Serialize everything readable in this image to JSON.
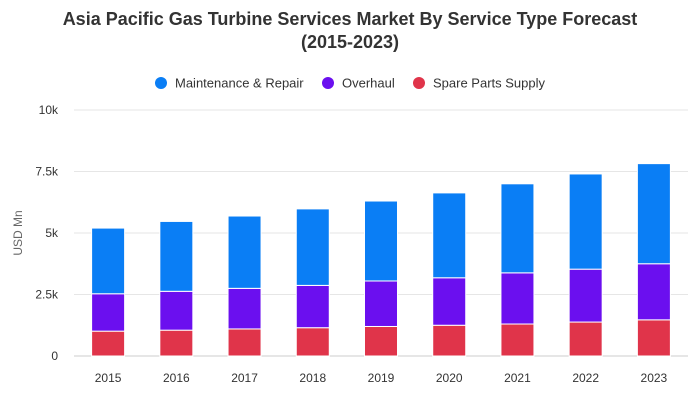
{
  "chart_data": {
    "type": "bar",
    "stacked": true,
    "title_line1": "Asia Pacific Gas Turbine Services Market By Service Type Forecast",
    "title_line2": "(2015-2023)",
    "ylabel": "USD Mn",
    "xlabel": "",
    "ylim": [
      0,
      10000
    ],
    "yticks": [
      {
        "value": 0,
        "label": "0"
      },
      {
        "value": 2500,
        "label": "2.5k"
      },
      {
        "value": 5000,
        "label": "5k"
      },
      {
        "value": 7500,
        "label": "7.5k"
      },
      {
        "value": 10000,
        "label": "10k"
      }
    ],
    "categories": [
      "2015",
      "2016",
      "2017",
      "2018",
      "2019",
      "2020",
      "2021",
      "2022",
      "2023"
    ],
    "grid": true,
    "legend_position": "top",
    "series": [
      {
        "name": "Spare Parts Supply",
        "color": "#e0344a",
        "values": [
          1010,
          1050,
          1100,
          1150,
          1200,
          1250,
          1300,
          1380,
          1470
        ]
      },
      {
        "name": "Overhaul",
        "color": "#6b0fef",
        "values": [
          1520,
          1580,
          1650,
          1720,
          1850,
          1930,
          2080,
          2150,
          2280
        ]
      },
      {
        "name": "Maintenance & Repair",
        "color": "#0a7ef5",
        "values": [
          2670,
          2840,
          2940,
          3110,
          3250,
          3450,
          3620,
          3870,
          4070
        ]
      }
    ],
    "legend_order": [
      "Maintenance & Repair",
      "Overhaul",
      "Spare Parts Supply"
    ]
  }
}
